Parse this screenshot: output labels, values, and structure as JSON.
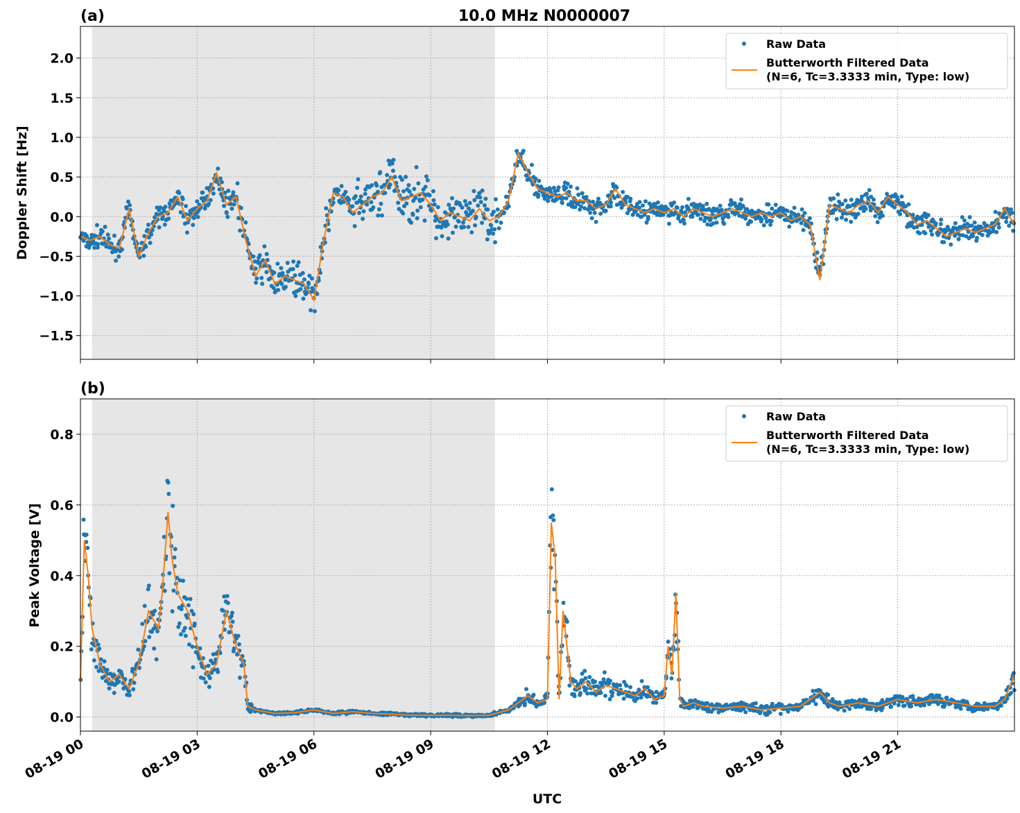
{
  "title": "10.0 MHz N0000007",
  "xlabel": "UTC",
  "x_tick_labels": [
    "08-19 00",
    "08-19 03",
    "08-19 06",
    "08-19 09",
    "08-19 12",
    "08-19 15",
    "08-19 18",
    "08-19 21"
  ],
  "night_shading": {
    "start_hour": 0.3,
    "end_hour": 10.65,
    "color": "#e6e6e6"
  },
  "colors": {
    "raw": "#1f77b4",
    "filtered": "#ff7f0e"
  },
  "legend": {
    "raw_label": "Raw Data",
    "filtered_label_line1": "Butterworth Filtered Data",
    "filtered_label_line2": "(N=6, Tc=3.3333 min, Type: low)"
  },
  "chart_data": [
    {
      "type": "scatter",
      "panel_label": "(a)",
      "ylabel": "Doppler Shift [Hz]",
      "xlim": [
        0,
        24
      ],
      "ylim": [
        -1.8,
        2.4
      ],
      "y_ticks": [
        -1.5,
        -1.0,
        -0.5,
        0.0,
        0.5,
        1.0,
        1.5,
        2.0
      ],
      "y_tick_labels": [
        "−1.5",
        "−1.0",
        "−0.5",
        "0.0",
        "0.5",
        "1.0",
        "1.5",
        "2.0"
      ],
      "grid": true,
      "legend_position": "top-right",
      "series": [
        {
          "name": "Butterworth Filtered Data",
          "x": [
            0.0,
            0.25,
            0.5,
            0.75,
            1.0,
            1.25,
            1.5,
            1.75,
            2.0,
            2.25,
            2.5,
            2.75,
            3.0,
            3.25,
            3.5,
            3.75,
            4.0,
            4.25,
            4.5,
            4.75,
            5.0,
            5.25,
            5.5,
            5.75,
            6.0,
            6.25,
            6.5,
            6.75,
            7.0,
            7.25,
            7.5,
            7.75,
            8.0,
            8.25,
            8.5,
            8.75,
            9.0,
            9.25,
            9.5,
            9.75,
            10.0,
            10.25,
            10.5,
            10.75,
            11.0,
            11.25,
            11.5,
            11.75,
            12.0,
            12.25,
            12.5,
            12.75,
            13.0,
            13.25,
            13.5,
            13.75,
            14.0,
            14.25,
            14.5,
            14.75,
            15.0,
            15.25,
            15.5,
            15.75,
            16.0,
            16.25,
            16.5,
            16.75,
            17.0,
            17.25,
            17.5,
            17.75,
            18.0,
            18.25,
            18.5,
            18.75,
            19.0,
            19.25,
            19.5,
            19.75,
            20.0,
            20.25,
            20.5,
            20.75,
            21.0,
            21.25,
            21.5,
            21.75,
            22.0,
            22.25,
            22.5,
            22.75,
            23.0,
            23.25,
            23.5,
            23.75,
            24.0
          ],
          "values": [
            -0.25,
            -0.3,
            -0.25,
            -0.35,
            -0.4,
            0.1,
            -0.5,
            -0.2,
            0.0,
            0.05,
            0.25,
            -0.05,
            0.1,
            0.2,
            0.55,
            0.15,
            0.25,
            -0.3,
            -0.75,
            -0.55,
            -0.85,
            -0.75,
            -0.8,
            -0.85,
            -1.05,
            -0.3,
            0.3,
            0.25,
            0.05,
            0.15,
            0.25,
            0.3,
            0.5,
            0.2,
            0.25,
            0.3,
            0.15,
            -0.05,
            0.05,
            0.0,
            -0.05,
            0.1,
            -0.05,
            0.0,
            0.2,
            0.8,
            0.55,
            0.35,
            0.3,
            0.25,
            0.3,
            0.2,
            0.2,
            0.1,
            0.15,
            0.35,
            0.15,
            0.1,
            0.05,
            0.1,
            0.05,
            0.1,
            0.0,
            0.1,
            0.05,
            0.0,
            0.05,
            0.1,
            0.05,
            0.0,
            0.05,
            0.0,
            0.05,
            -0.05,
            0.0,
            -0.1,
            -0.8,
            0.15,
            0.1,
            0.05,
            0.15,
            0.2,
            0.05,
            0.25,
            0.15,
            0.05,
            -0.1,
            -0.05,
            -0.15,
            -0.25,
            -0.2,
            -0.15,
            -0.2,
            -0.15,
            -0.1,
            0.1,
            -0.1
          ]
        }
      ]
    },
    {
      "type": "scatter",
      "panel_label": "(b)",
      "ylabel": "Peak Voltage [V]",
      "xlim": [
        0,
        24
      ],
      "ylim": [
        -0.04,
        0.9
      ],
      "y_ticks": [
        0.0,
        0.2,
        0.4,
        0.6,
        0.8
      ],
      "y_tick_labels": [
        "0.0",
        "0.2",
        "0.4",
        "0.6",
        "0.8"
      ],
      "grid": true,
      "legend_position": "top-right",
      "series": [
        {
          "name": "Butterworth Filtered Data",
          "x": [
            0.0,
            0.1,
            0.2,
            0.3,
            0.5,
            0.75,
            1.0,
            1.25,
            1.5,
            1.75,
            2.0,
            2.1,
            2.25,
            2.35,
            2.5,
            2.75,
            3.0,
            3.25,
            3.5,
            3.75,
            4.0,
            4.2,
            4.3,
            4.5,
            5.0,
            5.5,
            6.0,
            6.5,
            7.0,
            7.5,
            8.0,
            8.5,
            9.0,
            9.5,
            10.0,
            10.5,
            11.0,
            11.25,
            11.5,
            11.75,
            12.0,
            12.1,
            12.2,
            12.3,
            12.4,
            12.5,
            12.6,
            12.75,
            13.0,
            13.25,
            13.5,
            13.75,
            14.0,
            14.25,
            14.5,
            14.75,
            15.0,
            15.1,
            15.2,
            15.3,
            15.4,
            15.5,
            15.75,
            16.0,
            16.5,
            17.0,
            17.5,
            18.0,
            18.5,
            19.0,
            19.25,
            19.5,
            20.0,
            20.5,
            21.0,
            21.5,
            22.0,
            22.5,
            23.0,
            23.5,
            23.75,
            24.0
          ],
          "values": [
            0.1,
            0.5,
            0.4,
            0.25,
            0.15,
            0.1,
            0.12,
            0.08,
            0.15,
            0.3,
            0.25,
            0.35,
            0.58,
            0.45,
            0.35,
            0.3,
            0.2,
            0.12,
            0.15,
            0.3,
            0.2,
            0.15,
            0.03,
            0.02,
            0.01,
            0.012,
            0.02,
            0.01,
            0.015,
            0.01,
            0.008,
            0.005,
            0.005,
            0.005,
            0.004,
            0.005,
            0.02,
            0.04,
            0.06,
            0.04,
            0.05,
            0.55,
            0.45,
            0.05,
            0.3,
            0.2,
            0.1,
            0.08,
            0.1,
            0.07,
            0.09,
            0.08,
            0.07,
            0.06,
            0.08,
            0.05,
            0.06,
            0.2,
            0.12,
            0.35,
            0.05,
            0.03,
            0.04,
            0.03,
            0.025,
            0.03,
            0.02,
            0.025,
            0.03,
            0.07,
            0.04,
            0.03,
            0.04,
            0.03,
            0.05,
            0.04,
            0.05,
            0.04,
            0.03,
            0.03,
            0.05,
            0.12
          ]
        }
      ]
    }
  ]
}
